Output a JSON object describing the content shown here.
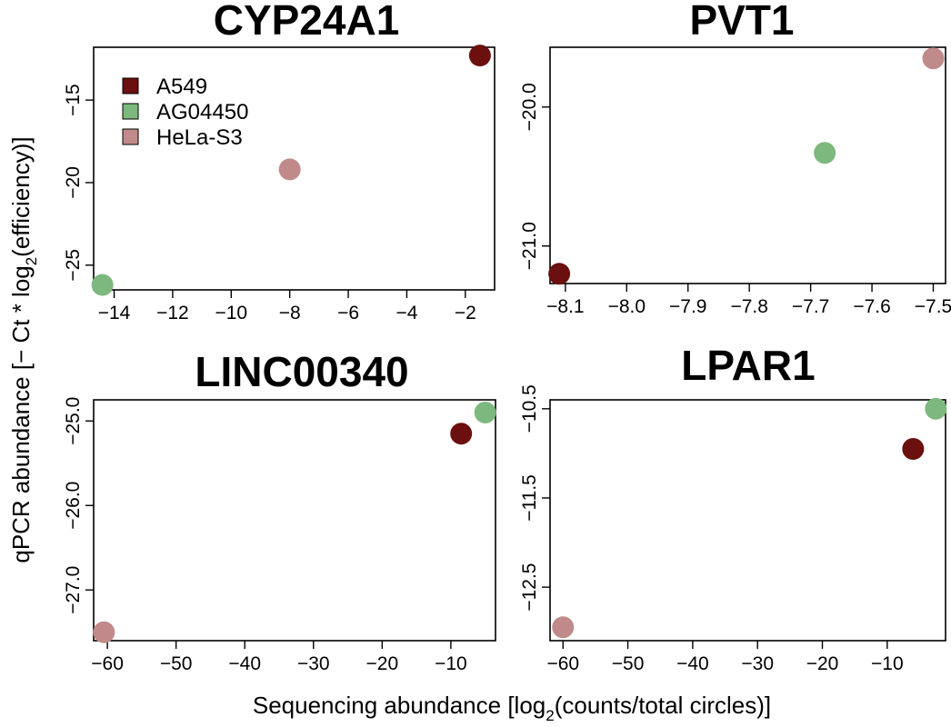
{
  "chart_data": [
    {
      "type": "scatter",
      "title": "CYP24A1",
      "xlim": [
        -14.7,
        -1.0
      ],
      "ylim": [
        -26.5,
        -11.8
      ],
      "xticks": [
        -14,
        -12,
        -10,
        -8,
        -6,
        -4,
        -2
      ],
      "xtick_labels": [
        "−14",
        "−12",
        "−10",
        "−8",
        "−6",
        "−4",
        "−2"
      ],
      "yticks": [
        -25,
        -20,
        -15
      ],
      "ytick_labels": [
        "−25",
        "−20",
        "−15"
      ],
      "series": [
        {
          "name": "A549",
          "x": [
            -1.5
          ],
          "y": [
            -12.3
          ]
        },
        {
          "name": "AG04450",
          "x": [
            -14.4
          ],
          "y": [
            -26.2
          ]
        },
        {
          "name": "HeLa-S3",
          "x": [
            -8.0
          ],
          "y": [
            -19.2
          ]
        }
      ]
    },
    {
      "type": "scatter",
      "title": "PVT1",
      "xlim": [
        -8.125,
        -7.48
      ],
      "ylim": [
        -21.27,
        -19.57
      ],
      "xticks": [
        -8.1,
        -8.0,
        -7.9,
        -7.8,
        -7.7,
        -7.6,
        -7.5
      ],
      "xtick_labels": [
        "−8.1",
        "−8.0",
        "−7.9",
        "−7.8",
        "−7.7",
        "−7.6",
        "−7.5"
      ],
      "yticks": [
        -21.0,
        -20.0
      ],
      "ytick_labels": [
        "−21.0",
        "−20.0"
      ],
      "series": [
        {
          "name": "A549",
          "x": [
            -8.11
          ],
          "y": [
            -21.2
          ]
        },
        {
          "name": "AG04450",
          "x": [
            -7.677
          ],
          "y": [
            -20.33
          ]
        },
        {
          "name": "HeLa-S3",
          "x": [
            -7.5
          ],
          "y": [
            -19.65
          ]
        }
      ]
    },
    {
      "type": "scatter",
      "title": "LINC00340",
      "xlim": [
        -62.0,
        -3.5
      ],
      "ylim": [
        -27.6,
        -24.75
      ],
      "xticks": [
        -60,
        -50,
        -40,
        -30,
        -20,
        -10
      ],
      "xtick_labels": [
        "−60",
        "−50",
        "−40",
        "−30",
        "−20",
        "−10"
      ],
      "yticks": [
        -27.0,
        -26.0,
        -25.0
      ],
      "ytick_labels": [
        "−27.0",
        "−26.0",
        "−25.0"
      ],
      "series": [
        {
          "name": "A549",
          "x": [
            -8.5
          ],
          "y": [
            -25.15
          ]
        },
        {
          "name": "AG04450",
          "x": [
            -5.0
          ],
          "y": [
            -24.9
          ]
        },
        {
          "name": "HeLa-S3",
          "x": [
            -60.5
          ],
          "y": [
            -27.5
          ]
        }
      ]
    },
    {
      "type": "scatter",
      "title": "LPAR1",
      "xlim": [
        -62.0,
        -1.0
      ],
      "ylim": [
        -13.1,
        -10.4
      ],
      "xticks": [
        -60,
        -50,
        -40,
        -30,
        -20,
        -10
      ],
      "xtick_labels": [
        "−60",
        "−50",
        "−40",
        "−30",
        "−20",
        "−10"
      ],
      "yticks": [
        -12.5,
        -11.5,
        -10.5
      ],
      "ytick_labels": [
        "−12.5",
        "−11.5",
        "−10.5"
      ],
      "series": [
        {
          "name": "A549",
          "x": [
            -6.0
          ],
          "y": [
            -10.95
          ]
        },
        {
          "name": "AG04450",
          "x": [
            -2.5
          ],
          "y": [
            -10.5
          ]
        },
        {
          "name": "HeLa-S3",
          "x": [
            -60.0
          ],
          "y": [
            -12.95
          ]
        }
      ]
    }
  ],
  "legend": {
    "position": "top-left of first panel",
    "entries": [
      {
        "label": "A549",
        "color": "#6b0f0f"
      },
      {
        "label": "AG04450",
        "color": "#7db87e"
      },
      {
        "label": "HeLa-S3",
        "color": "#c08a8a"
      }
    ]
  },
  "axes": {
    "ylabel_main": "qPCR abundance [− Ct * log",
    "ylabel_sub": "2",
    "ylabel_tail": "(efficiency)]",
    "xlabel_main": "Sequencing abundance [log",
    "xlabel_sub": "2",
    "xlabel_tail": "(counts/total circles)]"
  }
}
